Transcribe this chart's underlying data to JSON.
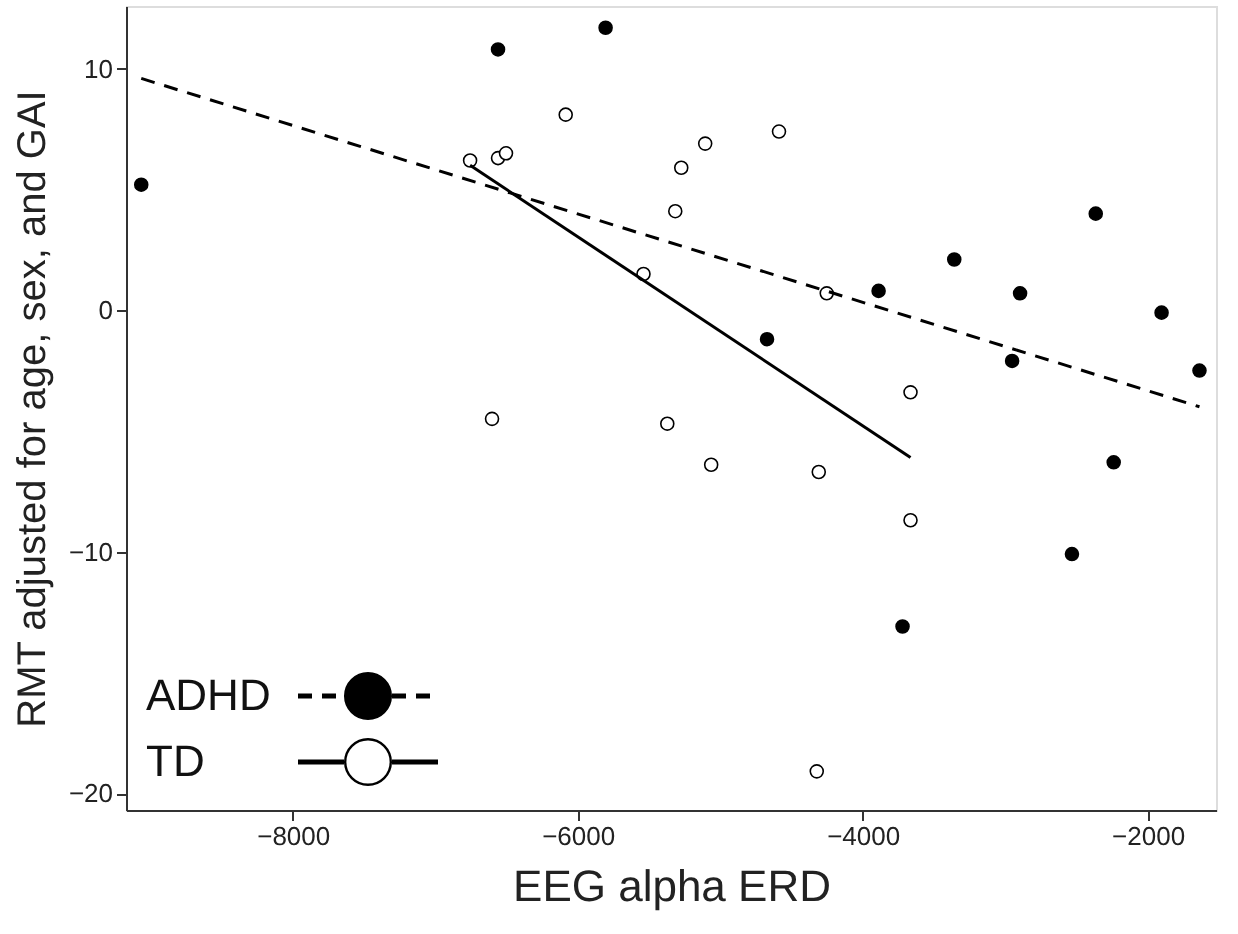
{
  "chart_data": {
    "type": "scatter",
    "xlabel": "EEG alpha ERD",
    "ylabel": "RMT adjusted for age, sex, and GAI",
    "xlim": [
      -9170,
      -1520
    ],
    "ylim": [
      -20.7,
      12.6
    ],
    "xticks": [
      -8000,
      -6000,
      -4000,
      -2000
    ],
    "yticks": [
      -20,
      -10,
      0,
      10
    ],
    "grid": false,
    "legend": "bottom left",
    "marker": "circle",
    "series": [
      {
        "name": "ADHD",
        "color": "#000000",
        "x": [
          -9063,
          -6559,
          -5804,
          -4671,
          -3888,
          -3357,
          -2895,
          -2951,
          -2364,
          -1902,
          -1636,
          -2238,
          -2531,
          -3720
        ],
        "values": [
          5.2,
          10.8,
          11.7,
          -1.2,
          0.8,
          2.1,
          0.7,
          -2.1,
          4.0,
          -0.1,
          -2.5,
          -6.3,
          -10.1,
          -13.1
        ]
      },
      {
        "name": "TD",
        "color": "#ffffff",
        "x": [
          -6755,
          -6559,
          -6503,
          -6084,
          -5273,
          -5315,
          -5538,
          -6601,
          -5371,
          -5105,
          -4587,
          -4252,
          -3664,
          -5063,
          -4308,
          -3664,
          -4322
        ],
        "values": [
          6.2,
          6.3,
          6.5,
          8.1,
          5.9,
          4.1,
          1.5,
          -4.5,
          -4.7,
          6.9,
          7.4,
          0.7,
          -3.4,
          -6.4,
          -6.7,
          -8.7,
          -19.1
        ]
      },
      {
        "type": "line",
        "marker": "none",
        "line_style": "dashed",
        "color": "#000000",
        "x": [
          -9063,
          -1636
        ],
        "values": [
          9.6,
          -4.0
        ]
      },
      {
        "type": "line",
        "marker": "none",
        "line_style": "solid",
        "color": "#000000",
        "x": [
          -6755,
          -3664
        ],
        "values": [
          6.0,
          -6.1
        ]
      }
    ]
  }
}
